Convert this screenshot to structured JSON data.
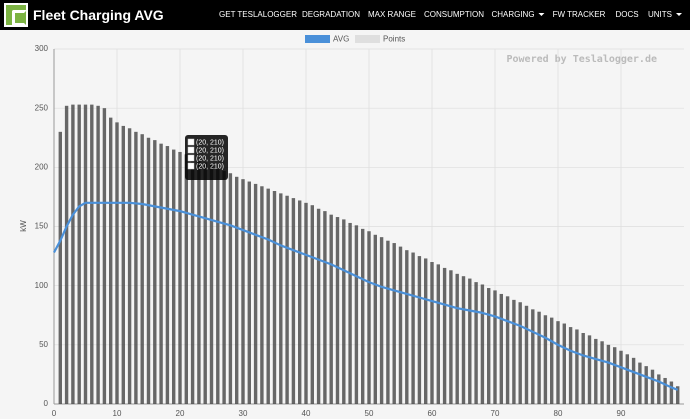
{
  "nav": {
    "title": "Fleet Charging AVG",
    "items": [
      "GET TESLALOGGER",
      "DEGRADATION",
      "MAX RANGE",
      "CONSUMPTION",
      "CHARGING",
      "FW TRACKER",
      "DOCS",
      "UNITS"
    ]
  },
  "tooltip": {
    "items": [
      "(20, 210)",
      "(20, 210)",
      "(20, 210)",
      "(20, 210)"
    ]
  },
  "chart_data": {
    "type": "line",
    "ylabel": "kW",
    "watermark": "Powered by Teslalogger.de",
    "xlim": [
      0,
      100
    ],
    "xticks": [
      0,
      10,
      20,
      30,
      40,
      50,
      60,
      70,
      80,
      90
    ],
    "ylim": [
      0,
      300
    ],
    "yticks": [
      0,
      50,
      100,
      150,
      200,
      250,
      300
    ],
    "grid": true,
    "series": [
      {
        "name": "AVG",
        "color": "#4a90d9",
        "type": "line",
        "x": [
          0,
          1,
          2,
          3,
          4,
          5,
          6,
          8,
          10,
          12,
          14,
          16,
          18,
          20,
          22,
          24,
          26,
          28,
          30,
          32,
          34,
          36,
          38,
          40,
          42,
          44,
          46,
          48,
          50,
          52,
          54,
          56,
          58,
          60,
          62,
          64,
          66,
          68,
          70,
          72,
          74,
          76,
          78,
          80,
          82,
          84,
          86,
          88,
          90,
          92,
          94,
          96,
          98,
          99
        ],
        "values": [
          128,
          138,
          150,
          160,
          167,
          170,
          170,
          170,
          170,
          170,
          169,
          167,
          165,
          163,
          160,
          157,
          154,
          151,
          147,
          143,
          139,
          134,
          130,
          126,
          122,
          118,
          113,
          108,
          103,
          99,
          96,
          93,
          90,
          87,
          84,
          81,
          79,
          77,
          74,
          70,
          66,
          61,
          56,
          50,
          45,
          41,
          38,
          35,
          31,
          27,
          23,
          19,
          14,
          12
        ]
      },
      {
        "name": "Points",
        "color": "#444444",
        "type": "scatter",
        "x": [
          1,
          2,
          3,
          4,
          5,
          6,
          7,
          8,
          9,
          10,
          11,
          12,
          13,
          14,
          15,
          16,
          17,
          18,
          19,
          20,
          21,
          22,
          23,
          24,
          25,
          26,
          27,
          28,
          29,
          30,
          31,
          32,
          33,
          34,
          35,
          36,
          37,
          38,
          39,
          40,
          41,
          42,
          43,
          44,
          45,
          46,
          47,
          48,
          49,
          50,
          51,
          52,
          53,
          54,
          55,
          56,
          57,
          58,
          59,
          60,
          61,
          62,
          63,
          64,
          65,
          66,
          67,
          68,
          69,
          70,
          71,
          72,
          73,
          74,
          75,
          76,
          77,
          78,
          79,
          80,
          81,
          82,
          83,
          84,
          85,
          86,
          87,
          88,
          89,
          90,
          91,
          92,
          93,
          94,
          95,
          96,
          97,
          98,
          99
        ],
        "values": [
          230,
          252,
          253,
          253,
          253,
          253,
          252,
          250,
          242,
          238,
          235,
          233,
          230,
          228,
          225,
          223,
          220,
          218,
          215,
          213,
          211,
          208,
          206,
          204,
          202,
          199,
          197,
          195,
          192,
          190,
          188,
          186,
          184,
          182,
          180,
          178,
          176,
          174,
          172,
          170,
          168,
          165,
          163,
          160,
          158,
          156,
          153,
          151,
          148,
          146,
          143,
          141,
          138,
          136,
          133,
          130,
          128,
          125,
          123,
          120,
          118,
          115,
          113,
          110,
          108,
          106,
          103,
          101,
          98,
          96,
          93,
          91,
          88,
          86,
          83,
          80,
          78,
          75,
          73,
          70,
          68,
          65,
          63,
          60,
          58,
          55,
          53,
          50,
          48,
          45,
          42,
          39,
          35,
          32,
          29,
          25,
          22,
          19,
          15
        ]
      }
    ]
  }
}
